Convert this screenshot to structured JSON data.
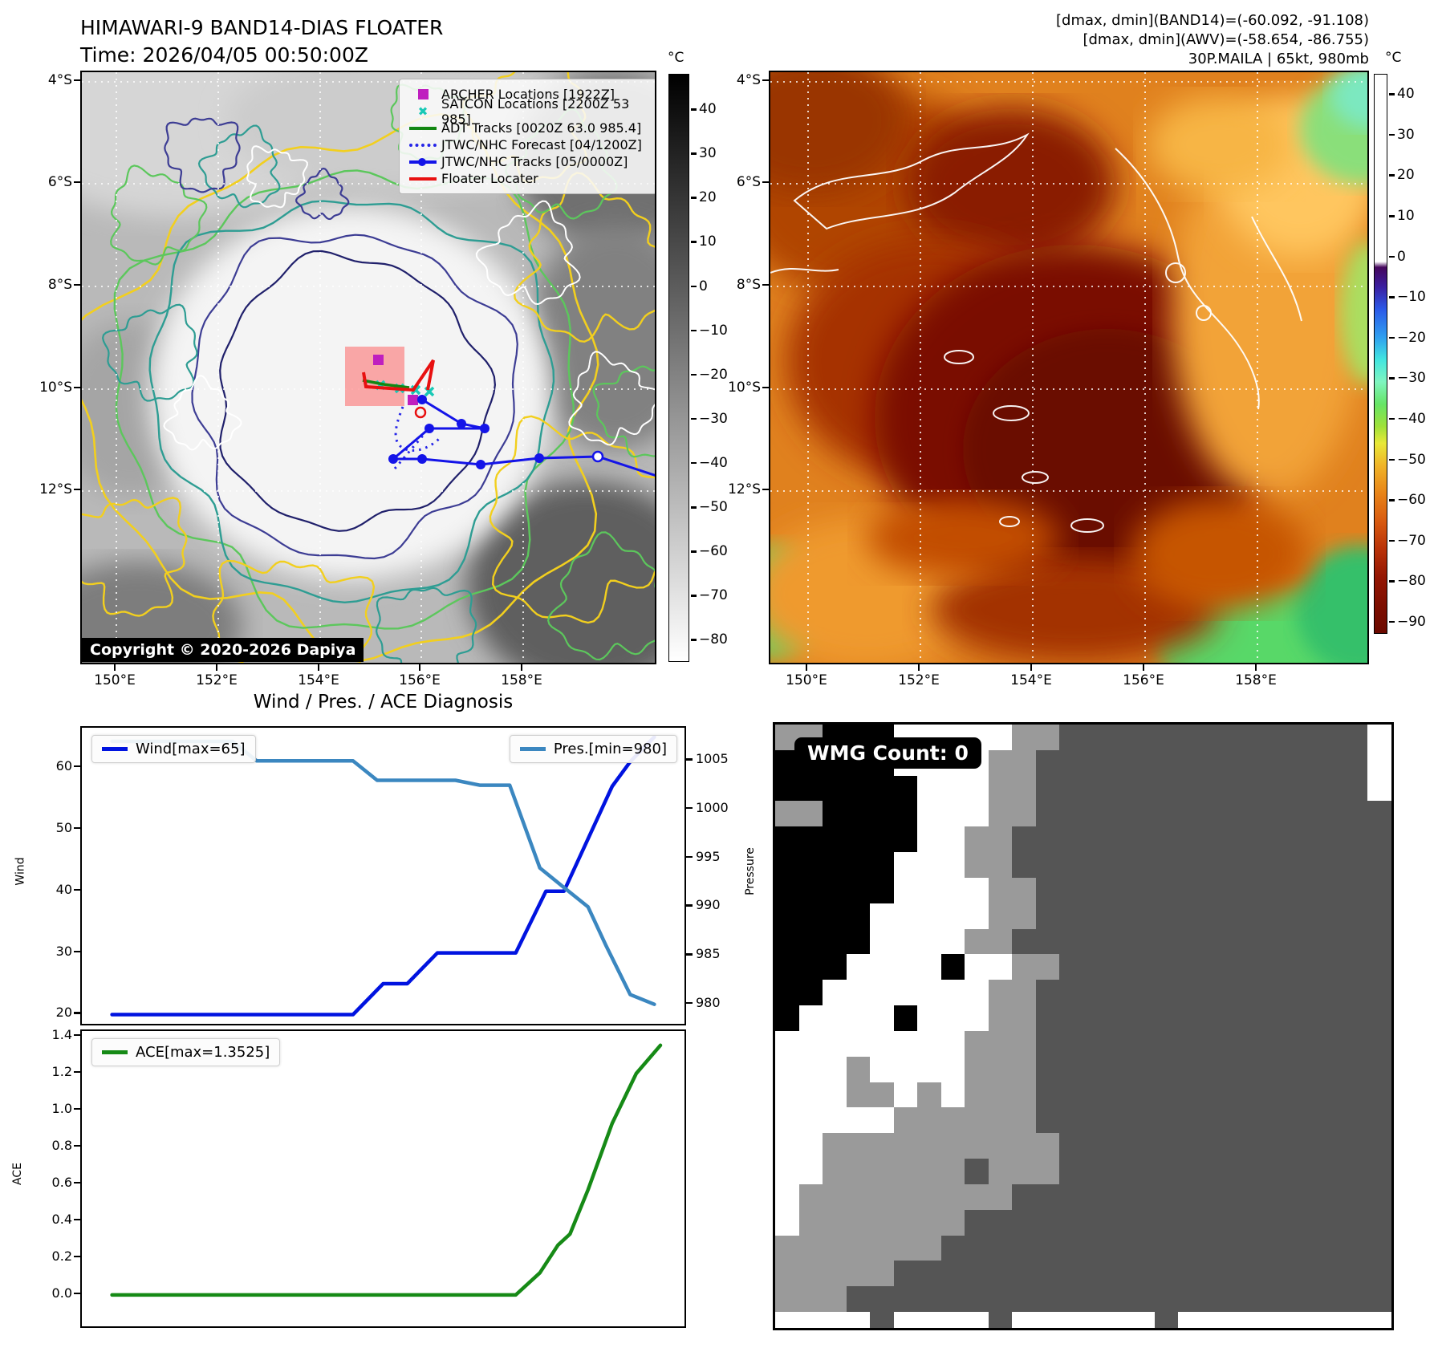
{
  "header": {
    "title_line1": "HIMAWARI-9 BAND14-DIAS FLOATER",
    "title_line2": "Time: 2026/04/05 00:50:00Z",
    "dminmax_band14": "[dmax, dmin](BAND14)=(-60.092, -91.108)",
    "dminmax_awv": "[dmax, dmin](AWV)=(-58.654, -86.755)",
    "storm_info": "30P.MAILA | 65kt, 980mb"
  },
  "left_map": {
    "legend": [
      {
        "label": "ARCHER Locations [1922Z]",
        "marker": "magenta-square"
      },
      {
        "label": "SATCON Locations [2200Z 53 985]",
        "marker": "cyan-x"
      },
      {
        "label": "ADT Tracks [0020Z 63.0 985.4]",
        "marker": "green-line"
      },
      {
        "label": "JTWC/NHC Forecast [04/1200Z]",
        "marker": "blue-dotted"
      },
      {
        "label": "JTWC/NHC Tracks [05/0000Z]",
        "marker": "blue-line-dot"
      },
      {
        "label": "Floater Locater",
        "marker": "red-line"
      }
    ],
    "copyright": "Copyright © 2020-2026 Dapiya",
    "lat_ticks": [
      "4°S",
      "6°S",
      "8°S",
      "10°S",
      "12°S"
    ],
    "lon_ticks": [
      "150°E",
      "152°E",
      "154°E",
      "156°E",
      "158°E"
    ],
    "colorbar": {
      "unit": "°C",
      "values": [
        40,
        30,
        20,
        10,
        0,
        -10,
        -20,
        -30,
        -40,
        -50,
        -60,
        -70,
        -80
      ],
      "labels": [
        "40",
        "30",
        "20",
        "10",
        "0",
        "−10",
        "−20",
        "−30",
        "−40",
        "−50",
        "−60",
        "−70",
        "−80"
      ]
    }
  },
  "right_map": {
    "lat_ticks": [
      "4°S",
      "6°S",
      "8°S",
      "10°S",
      "12°S"
    ],
    "lon_ticks": [
      "150°E",
      "152°E",
      "154°E",
      "156°E",
      "158°E"
    ],
    "colorbar": {
      "unit": "°C",
      "values": [
        40,
        30,
        20,
        10,
        0,
        -10,
        -20,
        -30,
        -40,
        -50,
        -60,
        -70,
        -80,
        -90
      ],
      "labels": [
        "40",
        "30",
        "20",
        "10",
        "0",
        "−10",
        "−20",
        "−30",
        "−40",
        "−50",
        "−60",
        "−70",
        "−80",
        "−90"
      ]
    }
  },
  "chart_section": {
    "title": "Wind / Pres. / ACE Diagnosis"
  },
  "chart_data": [
    {
      "type": "line",
      "title": "Wind / Pres. / ACE Diagnosis",
      "xlim": [
        0,
        1
      ],
      "series": [
        {
          "name": "Wind[max=65]",
          "axis": "left",
          "color": "#0013e0",
          "x": [
            0.05,
            0.45,
            0.5,
            0.54,
            0.59,
            0.72,
            0.77,
            0.8,
            0.88,
            0.91,
            0.95
          ],
          "y": [
            20,
            20,
            25,
            25,
            30,
            30,
            40,
            40,
            57,
            61,
            65
          ]
        },
        {
          "name": "Pres.[min=980]",
          "axis": "right",
          "color": "#3b87c0",
          "x": [
            0.05,
            0.25,
            0.29,
            0.45,
            0.49,
            0.62,
            0.66,
            0.71,
            0.76,
            0.8,
            0.84,
            0.87,
            0.91,
            0.95
          ],
          "y": [
            1007,
            1007,
            1005,
            1005,
            1003,
            1003,
            1002.5,
            1002.5,
            994,
            992,
            990,
            986,
            981,
            980
          ]
        }
      ],
      "left_axis": {
        "label": "Wind",
        "ticks": [
          20,
          30,
          40,
          50,
          60
        ],
        "tick_labels": [
          "20",
          "30",
          "40",
          "50",
          "60"
        ],
        "ylim": [
          18.5,
          66.5
        ]
      },
      "right_axis": {
        "label": "Pressure",
        "ticks": [
          980,
          985,
          990,
          995,
          1000,
          1005
        ],
        "tick_labels": [
          "980",
          "985",
          "990",
          "995",
          "1000",
          "1005"
        ],
        "ylim": [
          978,
          1008.4
        ]
      },
      "grid": false,
      "legend_position": "top-left / top-right"
    },
    {
      "type": "line",
      "xlim": [
        0,
        1
      ],
      "series": [
        {
          "name": "ACE[max=1.3525]",
          "axis": "left",
          "color": "#168a16",
          "x": [
            0.05,
            0.72,
            0.76,
            0.79,
            0.81,
            0.84,
            0.88,
            0.92,
            0.96
          ],
          "y": [
            0,
            0,
            0.12,
            0.27,
            0.33,
            0.57,
            0.93,
            1.2,
            1.3525
          ]
        }
      ],
      "left_axis": {
        "label": "ACE",
        "ticks": [
          0.0,
          0.2,
          0.4,
          0.6,
          0.8,
          1.0,
          1.2,
          1.4
        ],
        "tick_labels": [
          "0.0",
          "0.2",
          "0.4",
          "0.6",
          "0.8",
          "1.0",
          "1.2",
          "1.4"
        ],
        "ylim": [
          -0.17,
          1.43
        ]
      },
      "grid": false,
      "legend_position": "top-left"
    }
  ],
  "wmg": {
    "label": "WMG Count: 0",
    "palette": {
      "K": "#000000",
      "W": "#ffffff",
      "G": "#9a9a9a",
      "D": "#555555"
    },
    "rows": [
      "GGKKKWWWWWGGDDDDDDDDDDDDDW",
      "KKKKKWWWWGGDDDDDDDDDDDDDDW",
      "KKKKKKWWWGGDDDDDDDDDDDDDDW",
      "GGKKKKWWWGGDDDDDDDDDDDDDDD",
      "KKKKKKWWGGDDDDDDDDDDDDDDDD",
      "KKKKKWWWGGDDDDDDDDDDDDDDDD",
      "KKKKKWWWWGGDDDDDDDDDDDDDDD",
      "KKKKWWWWWGGDDDDDDDDDDDDDDD",
      "KKKKWWWWGGDDDDDDDDDDDDDDDD",
      "KKKWWWWKWWGGDDDDDDDDDDDDDD",
      "KKWWWWWWWGGDDDDDDDDDDDDDDD",
      "KWWWWKWWWGGDDDDDDDDDDDDDDD",
      "WWWWWWWWGGGDDDDDDDDDDDDDDD",
      "WWWGWWWWGGGDDDDDDDDDDDDDDD",
      "WWWGGWGWGGGDDDDDDDDDDDDDDD",
      "WWWWWGGGGGGDDDDDDDDDDDDDDD",
      "WWGGGGGGGGGGDDDDDDDDDDDDDD",
      "WWGGGGGGDGGGDDDDDDDDDDDDDD",
      "WGGGGGGGGGDDDDDDDDDDDDDDDD",
      "WGGGGGGGDDDDDDDDDDDDDDDDDD",
      "GGGGGGGDDDDDDDDDDDDDDDDDDD",
      "GGGGGDDDDDDDDDDDDDDDDDDDDD",
      "GGGDDDDDDDDDDDDDDDDDDDDDDD",
      "WWWWDWWWWDWWWWWWDWWWWWWWWW"
    ]
  }
}
